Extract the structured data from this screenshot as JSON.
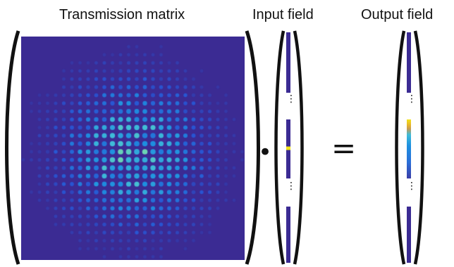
{
  "labels": {
    "transmission_matrix": "Transmission matrix",
    "input_field": "Input field",
    "output_field": "Output field"
  },
  "operators": {
    "dot": "•",
    "equals": "="
  },
  "ellipsis": "⋮",
  "colors": {
    "background_dark": "#3b2b93",
    "hot_yellow": "#f2e31a",
    "mid_blue": "#1d8fe0",
    "cyan": "#3fbcd8",
    "bracket": "#111111"
  },
  "input_vector": {
    "highlighted_element": "yellow"
  },
  "output_vector": {
    "gradient": [
      "yellow",
      "orange",
      "cyan",
      "blue"
    ]
  }
}
